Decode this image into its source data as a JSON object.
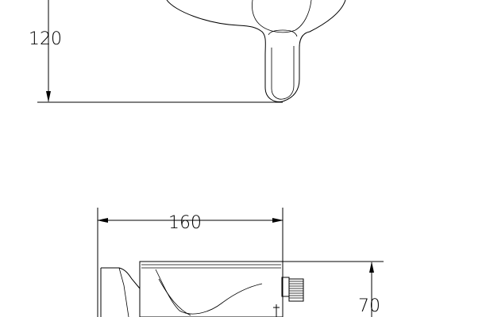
{
  "drawing": {
    "dimensions": {
      "height_top": "120",
      "width_bottom": "160",
      "height_bottom": "70"
    }
  }
}
